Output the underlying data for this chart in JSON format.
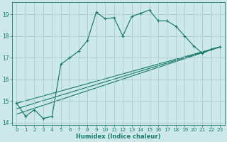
{
  "xlabel": "Humidex (Indice chaleur)",
  "ylabel": "",
  "bg_color": "#cce8e8",
  "line_color": "#1a7a6e",
  "grid_color": "#aacccc",
  "xlim": [
    -0.5,
    23.5
  ],
  "ylim": [
    13.9,
    19.55
  ],
  "yticks": [
    14,
    15,
    16,
    17,
    18,
    19
  ],
  "xticks": [
    0,
    1,
    2,
    3,
    4,
    5,
    6,
    7,
    8,
    9,
    10,
    11,
    12,
    13,
    14,
    15,
    16,
    17,
    18,
    19,
    20,
    21,
    22,
    23
  ],
  "main_line": {
    "x": [
      0,
      1,
      2,
      3,
      4,
      5,
      6,
      7,
      8,
      9,
      10,
      11,
      12,
      13,
      14,
      15,
      16,
      17,
      18,
      19,
      20,
      21,
      22,
      23
    ],
    "y": [
      14.9,
      14.3,
      14.6,
      14.2,
      14.3,
      16.7,
      17.0,
      17.3,
      17.8,
      19.1,
      18.8,
      18.85,
      18.0,
      18.9,
      19.05,
      19.2,
      18.7,
      18.7,
      18.45,
      18.0,
      17.55,
      17.2,
      17.4,
      17.5
    ]
  },
  "trend_lines": [
    {
      "x": [
        0,
        23
      ],
      "y": [
        14.9,
        17.5
      ]
    },
    {
      "x": [
        0,
        23
      ],
      "y": [
        14.65,
        17.5
      ]
    },
    {
      "x": [
        0,
        23
      ],
      "y": [
        14.4,
        17.5
      ]
    }
  ]
}
